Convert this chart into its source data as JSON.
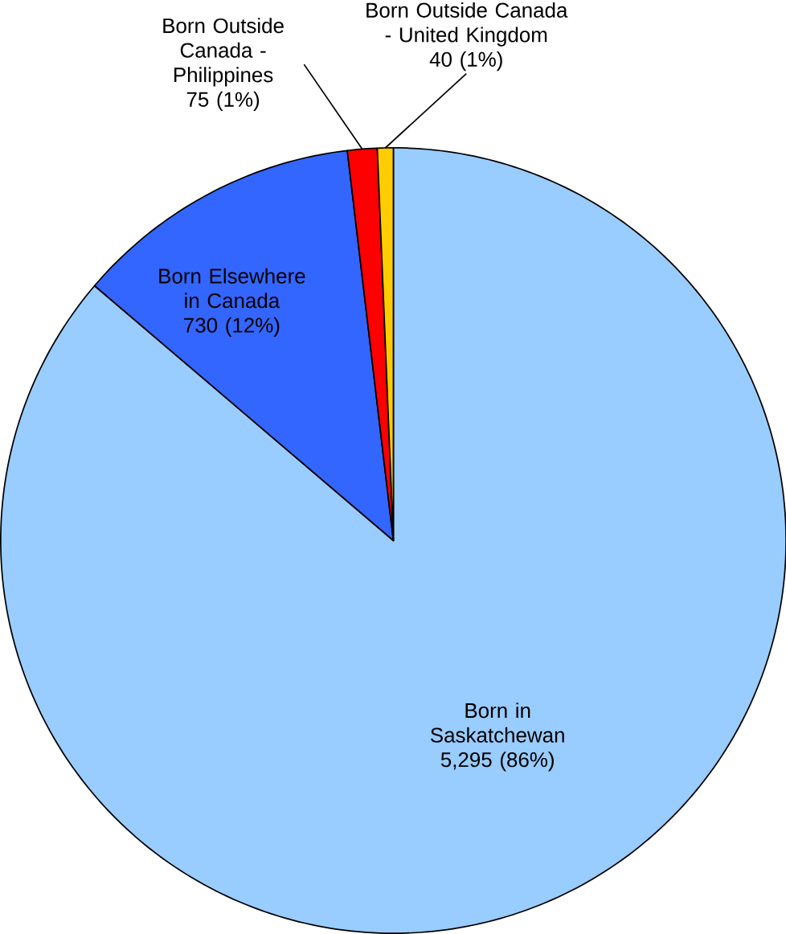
{
  "chart_data": {
    "type": "pie",
    "categories": [
      "Born in Saskatchewan",
      "Born Elsewhere in Canada",
      "Born Outside Canada - Philippines",
      "Born Outside Canada - United Kingdom"
    ],
    "values": [
      5295,
      730,
      75,
      40
    ],
    "colors": [
      "#99ccff",
      "#3366ff",
      "#ff0000",
      "#ffcc00"
    ],
    "value_labels": [
      "5,295 (86%)",
      "730 (12%)",
      "75 (1%)",
      "40 (1%)"
    ]
  }
}
